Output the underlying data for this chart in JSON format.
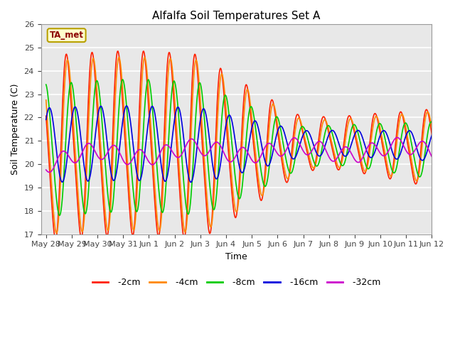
{
  "title": "Alfalfa Soil Temperatures Set A",
  "xlabel": "Time",
  "ylabel": "Soil Temperature (C)",
  "ylim": [
    17.0,
    26.0
  ],
  "yticks": [
    17.0,
    18.0,
    19.0,
    20.0,
    21.0,
    22.0,
    23.0,
    24.0,
    25.0,
    26.0
  ],
  "plot_bg_color": "#e8e8e8",
  "fig_bg_color": "#ffffff",
  "legend_label": "TA_met",
  "series_colors": {
    "-2cm": "#ff2000",
    "-4cm": "#ff8800",
    "-8cm": "#00cc00",
    "-16cm": "#0000dd",
    "-32cm": "#cc00cc"
  },
  "x_tick_labels": [
    "May 28",
    "May 29",
    "May 30",
    "May 31",
    "Jun 1",
    "Jun 2",
    "Jun 3",
    "Jun 4",
    "Jun 5",
    "Jun 6",
    "Jun 7",
    "Jun 8",
    "Jun 9",
    "Jun 10",
    "Jun 11",
    "Jun 12"
  ],
  "n_days": 15
}
